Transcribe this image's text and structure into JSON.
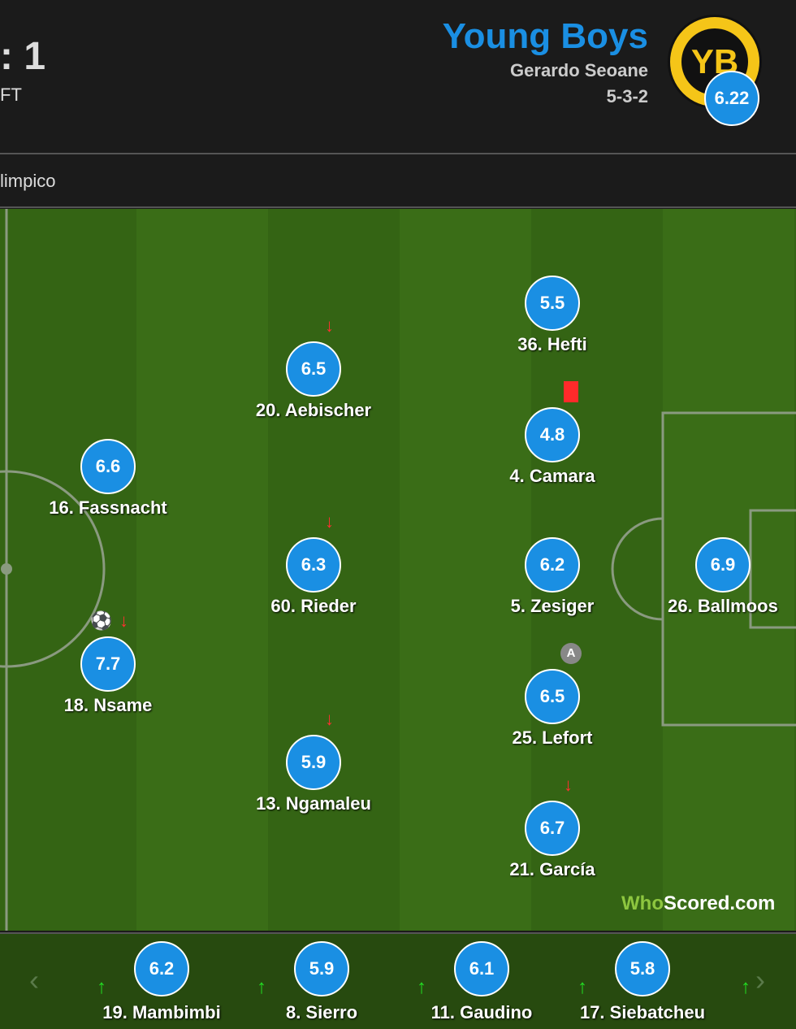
{
  "header": {
    "score": ": 1",
    "status": "FT",
    "team_name": "Young Boys",
    "manager": "Gerardo Seoane",
    "formation": "5-3-2",
    "team_rating": "6.22",
    "badge_text": "YB",
    "venue": "limpico"
  },
  "colors": {
    "accent": "#1a8fe3",
    "pitch": "#346414",
    "sub_out": "#ff3030",
    "sub_in": "#22dd22",
    "red_card": "#ff2a2a"
  },
  "players": [
    {
      "name": "36. Hefti",
      "rating": "5.5"
    },
    {
      "name": "20. Aebischer",
      "rating": "6.5",
      "sub_out": true
    },
    {
      "name": "4. Camara",
      "rating": "4.8",
      "red_card": true
    },
    {
      "name": "16. Fassnacht",
      "rating": "6.6"
    },
    {
      "name": "60. Rieder",
      "rating": "6.3",
      "sub_out": true
    },
    {
      "name": "5. Zesiger",
      "rating": "6.2"
    },
    {
      "name": "26. Ballmoos",
      "rating": "6.9"
    },
    {
      "name": "18. Nsame",
      "rating": "7.7",
      "goal": true,
      "sub_out": true
    },
    {
      "name": "25. Lefort",
      "rating": "6.5",
      "captain": true
    },
    {
      "name": "13. Ngamaleu",
      "rating": "5.9",
      "sub_out": true
    },
    {
      "name": "21. García",
      "rating": "6.7",
      "sub_out": true
    }
  ],
  "captain_label": "A",
  "bench": [
    {
      "name": "19. Mambimbi",
      "rating": "6.2"
    },
    {
      "name": "8. Sierro",
      "rating": "5.9"
    },
    {
      "name": "11. Gaudino",
      "rating": "6.1"
    },
    {
      "name": "17. Siebatcheu",
      "rating": "5.8"
    }
  ],
  "icons": {
    "sub_out": "↓",
    "sub_in": "↑",
    "prev": "‹",
    "next": "›",
    "goal": "⚽"
  },
  "watermark": {
    "who": "Who",
    "scored": "Scored",
    "com": ".com"
  }
}
